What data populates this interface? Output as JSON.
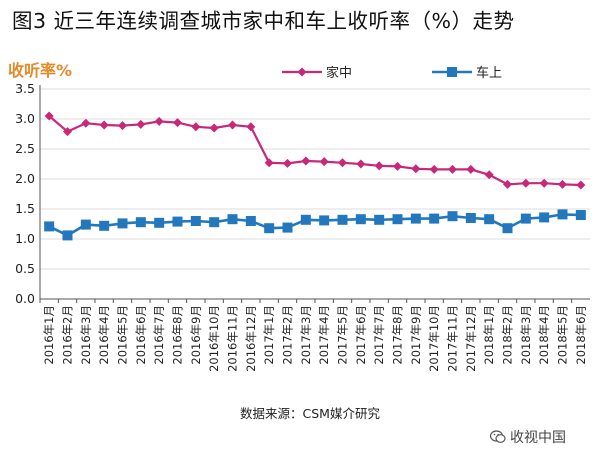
{
  "title": "图3 近三年连续调查城市家中和车上收听率（%）走势",
  "source": "数据来源：CSM媒介研究",
  "watermark": "收视中国",
  "colors": {
    "home": "#c8287a",
    "car": "#2378bd",
    "axis_label": "#e58a2a",
    "grid": "#dddddd",
    "text": "#222222"
  },
  "chart_data": {
    "type": "line",
    "title": "图3 近三年连续调查城市家中和车上收听率（%）走势",
    "ylabel": "收听率%",
    "xlabel": "",
    "ylim": [
      0,
      3.5
    ],
    "yticks": [
      "0.0",
      "0.5",
      "1.0",
      "1.5",
      "2.0",
      "2.5",
      "3.0",
      "3.5"
    ],
    "legend_position": "top-right",
    "categories": [
      "2016年1月",
      "2016年2月",
      "2016年3月",
      "2016年4月",
      "2016年5月",
      "2016年6月",
      "2016年7月",
      "2016年8月",
      "2016年9月",
      "2016年10月",
      "2016年11月",
      "2016年12月",
      "2017年1月",
      "2017年2月",
      "2017年3月",
      "2017年4月",
      "2017年5月",
      "2017年6月",
      "2017年7月",
      "2017年8月",
      "2017年9月",
      "2017年10月",
      "2017年11月",
      "2017年12月",
      "2018年1月",
      "2018年2月",
      "2018年3月",
      "2018年4月",
      "2018年5月",
      "2018年6月"
    ],
    "series": [
      {
        "name": "家中",
        "marker": "diamond",
        "values": [
          3.05,
          2.79,
          2.93,
          2.9,
          2.89,
          2.91,
          2.96,
          2.94,
          2.87,
          2.85,
          2.9,
          2.87,
          2.27,
          2.26,
          2.3,
          2.29,
          2.27,
          2.25,
          2.22,
          2.21,
          2.17,
          2.16,
          2.16,
          2.16,
          2.07,
          1.91,
          1.93,
          1.93,
          1.91,
          1.9
        ]
      },
      {
        "name": "车上",
        "marker": "square",
        "values": [
          1.21,
          1.06,
          1.24,
          1.22,
          1.26,
          1.28,
          1.27,
          1.29,
          1.3,
          1.28,
          1.33,
          1.3,
          1.18,
          1.19,
          1.32,
          1.31,
          1.32,
          1.33,
          1.32,
          1.33,
          1.34,
          1.34,
          1.38,
          1.35,
          1.33,
          1.18,
          1.34,
          1.36,
          1.41,
          1.4
        ]
      }
    ]
  }
}
